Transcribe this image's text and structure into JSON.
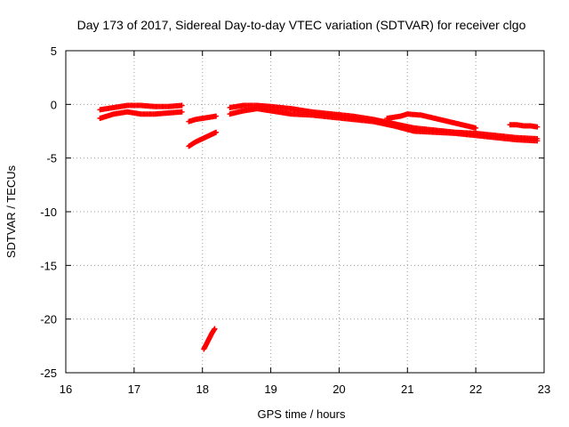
{
  "chart_data": {
    "type": "scatter",
    "title": "Day 173 of 2017, Sidereal Day-to-day VTEC variation (SDTVAR) for receiver clgo",
    "xlabel": "GPS time / hours",
    "ylabel": "SDTVAR / TECUs",
    "xlim": [
      16,
      23
    ],
    "ylim": [
      -25,
      5
    ],
    "grid": true,
    "marker": "plus",
    "color": "#ff0000",
    "x_ticks": [
      {
        "value": 16,
        "label": "16"
      },
      {
        "value": 17,
        "label": "17"
      },
      {
        "value": 18,
        "label": "18"
      },
      {
        "value": 19,
        "label": "19"
      },
      {
        "value": 20,
        "label": "20"
      },
      {
        "value": 21,
        "label": "21"
      },
      {
        "value": 22,
        "label": "22"
      },
      {
        "value": 23,
        "label": "23"
      }
    ],
    "y_ticks": [
      {
        "value": 5,
        "label": "5"
      },
      {
        "value": 0,
        "label": "0"
      },
      {
        "value": -5,
        "label": "-5"
      },
      {
        "value": -10,
        "label": "-10"
      },
      {
        "value": -15,
        "label": "-15"
      },
      {
        "value": -20,
        "label": "-20"
      },
      {
        "value": -25,
        "label": "-25"
      }
    ],
    "series": [
      {
        "name": "arc-1-upper",
        "x": [
          16.5,
          16.7,
          16.9,
          17.1,
          17.3,
          17.5,
          17.7
        ],
        "y": [
          -0.5,
          -0.3,
          -0.1,
          -0.1,
          -0.2,
          -0.2,
          -0.1
        ]
      },
      {
        "name": "arc-1-lower",
        "x": [
          16.5,
          16.7,
          16.9,
          17.1,
          17.3,
          17.5,
          17.7
        ],
        "y": [
          -1.3,
          -0.9,
          -0.7,
          -0.9,
          -0.9,
          -0.8,
          -0.7
        ]
      },
      {
        "name": "arc-2",
        "x": [
          17.8,
          17.9,
          18.0,
          18.1,
          18.2
        ],
        "y": [
          -1.6,
          -1.4,
          -1.3,
          -1.2,
          -1.1
        ]
      },
      {
        "name": "arc-3",
        "x": [
          17.8,
          17.9,
          18.0,
          18.1,
          18.2
        ],
        "y": [
          -3.9,
          -3.5,
          -3.2,
          -2.9,
          -2.6
        ]
      },
      {
        "name": "arc-4",
        "x": [
          18.02,
          18.06,
          18.1,
          18.14,
          18.18
        ],
        "y": [
          -22.8,
          -22.3,
          -21.8,
          -21.3,
          -20.9
        ]
      },
      {
        "name": "arc-5",
        "x": [
          18.4,
          18.6,
          18.8,
          19.0,
          19.3,
          19.6,
          19.9,
          20.2,
          20.5,
          20.8,
          21.1,
          21.4,
          21.7,
          22.0,
          22.3,
          22.6,
          22.9
        ],
        "y": [
          -0.3,
          -0.1,
          -0.1,
          -0.2,
          -0.4,
          -0.7,
          -0.9,
          -1.1,
          -1.4,
          -1.8,
          -2.2,
          -2.4,
          -2.6,
          -2.7,
          -2.9,
          -3.1,
          -3.2
        ]
      },
      {
        "name": "arc-6",
        "x": [
          18.4,
          18.6,
          18.8,
          19.0,
          19.3,
          19.6,
          19.9,
          20.2,
          20.5,
          20.8,
          21.1,
          21.4,
          21.7,
          22.0,
          22.3,
          22.6,
          22.9
        ],
        "y": [
          -0.9,
          -0.6,
          -0.4,
          -0.6,
          -0.9,
          -1.0,
          -1.2,
          -1.4,
          -1.6,
          -2.0,
          -2.5,
          -2.6,
          -2.7,
          -2.9,
          -3.1,
          -3.3,
          -3.4
        ]
      },
      {
        "name": "arc-7",
        "x": [
          20.7,
          20.9,
          21.0,
          21.2,
          21.4,
          21.6,
          21.8,
          22.0
        ],
        "y": [
          -1.3,
          -1.1,
          -0.9,
          -1.0,
          -1.3,
          -1.6,
          -1.9,
          -2.2
        ]
      },
      {
        "name": "arc-8",
        "x": [
          22.5,
          22.6,
          22.7,
          22.8,
          22.9
        ],
        "y": [
          -1.9,
          -1.9,
          -2.0,
          -2.0,
          -2.1
        ]
      }
    ]
  }
}
